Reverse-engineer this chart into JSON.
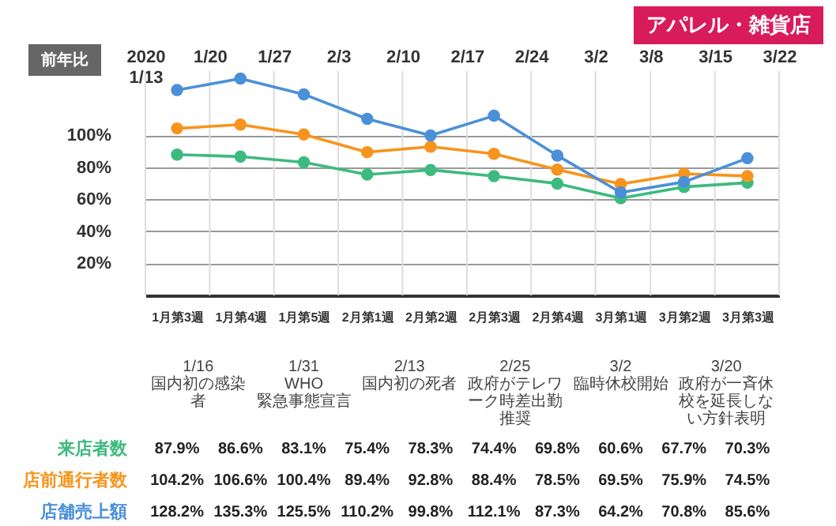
{
  "chart_data": {
    "type": "line",
    "title": "アパレル・雑貨店",
    "ylabel": "前年比",
    "categories": [
      "1月第3週",
      "1月第4週",
      "1月第5週",
      "2月第1週",
      "2月第2週",
      "2月第3週",
      "2月第4週",
      "3月第1週",
      "3月第2週",
      "3月第3週"
    ],
    "series": [
      {
        "name": "来店者数",
        "color": "#3dba7e",
        "values": [
          87.9,
          86.6,
          83.1,
          75.4,
          78.3,
          74.4,
          69.8,
          60.6,
          67.7,
          70.3
        ],
        "value_labels": [
          "87.9%",
          "86.6%",
          "83.1%",
          "75.4%",
          "78.3%",
          "74.4%",
          "69.8%",
          "60.6%",
          "67.7%",
          "70.3%"
        ]
      },
      {
        "name": "店前通行者数",
        "color": "#f7941d",
        "values": [
          104.2,
          106.6,
          100.4,
          89.4,
          92.8,
          88.4,
          78.5,
          69.5,
          75.9,
          74.5
        ],
        "value_labels": [
          "104.2%",
          "106.6%",
          "100.4%",
          "89.4%",
          "92.8%",
          "88.4%",
          "78.5%",
          "69.5%",
          "75.9%",
          "74.5%"
        ]
      },
      {
        "name": "店舗売上額",
        "color": "#4a90d9",
        "values": [
          128.2,
          135.3,
          125.5,
          110.2,
          99.8,
          112.1,
          87.3,
          64.2,
          70.8,
          85.6
        ],
        "value_labels": [
          "128.2%",
          "135.3%",
          "125.5%",
          "110.2%",
          "99.8%",
          "112.1%",
          "87.3%",
          "64.2%",
          "70.8%",
          "85.6%"
        ]
      }
    ],
    "ylim": [
      0,
      140
    ],
    "yticks": [
      {
        "value": 20,
        "label": "20%"
      },
      {
        "value": 40,
        "label": "40%"
      },
      {
        "value": 60,
        "label": "60%"
      },
      {
        "value": 80,
        "label": "80%"
      },
      {
        "value": 100,
        "label": "100%"
      }
    ],
    "x2lim": [
      "2020-01-13",
      "2020-03-22"
    ],
    "x2ticks": [
      {
        "value": "2020-01-13",
        "label": "2020\n1/13"
      },
      {
        "value": "2020-01-20",
        "label": "1/20"
      },
      {
        "value": "2020-01-27",
        "label": "1/27"
      },
      {
        "value": "2020-02-03",
        "label": "2/3"
      },
      {
        "value": "2020-02-10",
        "label": "2/10"
      },
      {
        "value": "2020-02-17",
        "label": "2/17"
      },
      {
        "value": "2020-02-24",
        "label": "2/24"
      },
      {
        "value": "2020-03-02",
        "label": "3/2"
      },
      {
        "value": "2020-03-08",
        "label": "3/8"
      },
      {
        "value": "2020-03-15",
        "label": "3/15"
      },
      {
        "value": "2020-03-22",
        "label": "3/22"
      }
    ],
    "annotations": [
      "1/16\n国内初の感染者",
      "1/31\nWHO\n緊急事態宣言",
      "2/13\n国内初の死者",
      "2/25\n政府がテレワーク時差出勤推奨",
      "3/2\n臨時休校開始",
      "3/20\n政府が一斉休校を延長しない方針表明"
    ],
    "grid": true,
    "legend": "bottom",
    "marker": "circle"
  }
}
